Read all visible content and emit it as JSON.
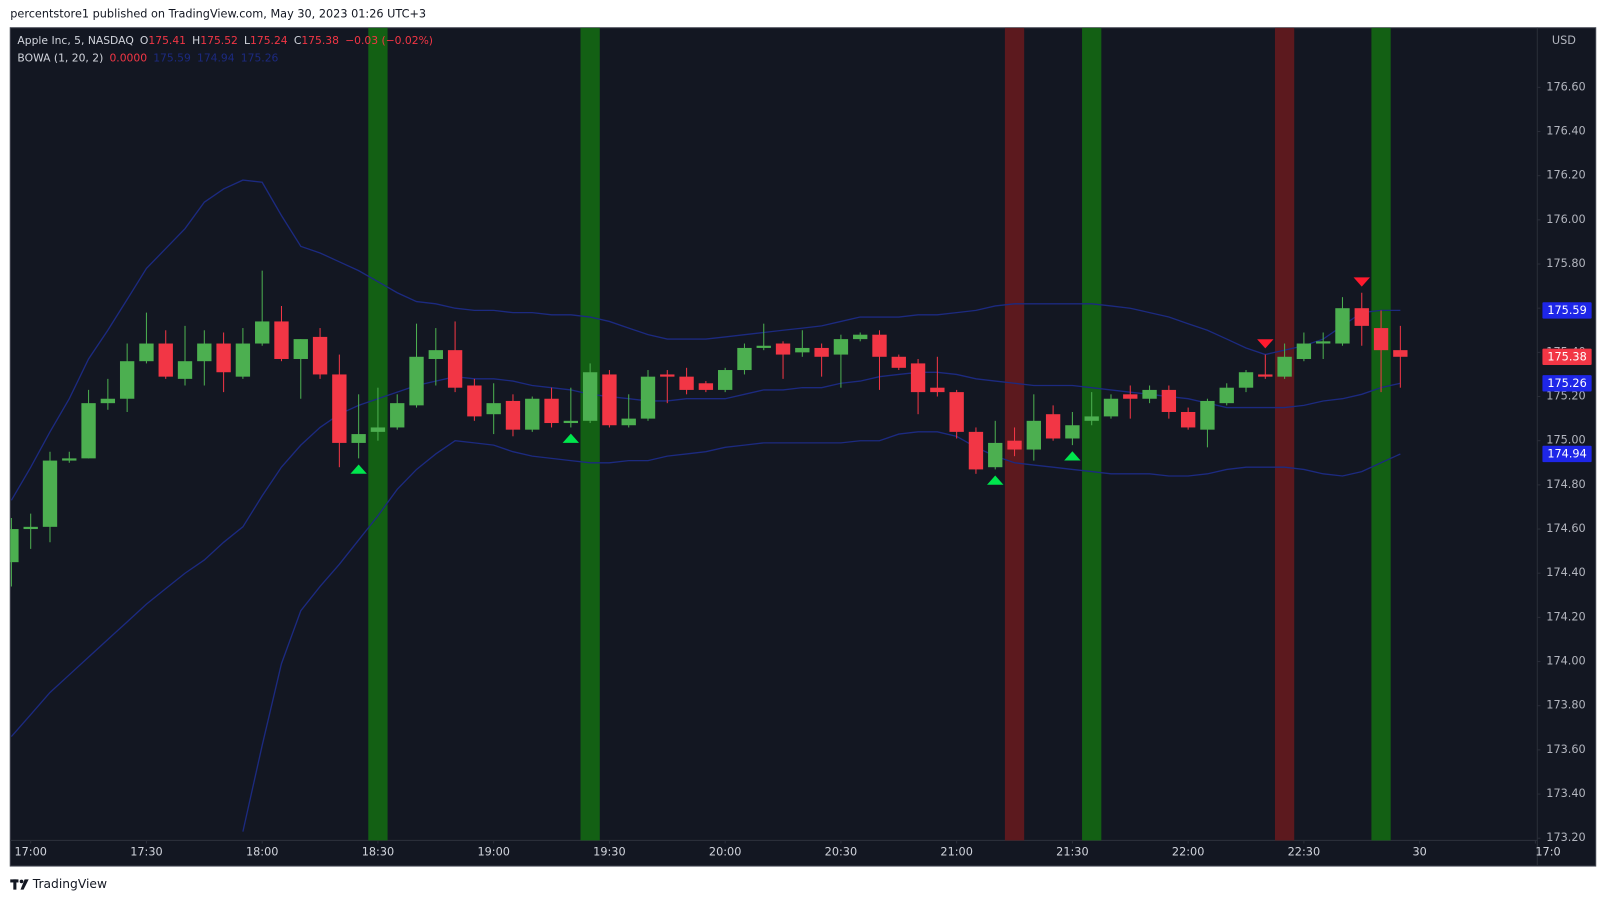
{
  "header": "percentstore1 published on TradingView.com, May 30, 2023 01:26 UTC+3",
  "footer": "TradingView",
  "chart_data": {
    "type": "candlestick",
    "symbol": "Apple Inc, 5, NASDAQ",
    "ohlc_prefixes": [
      "O",
      "H",
      "L",
      "C"
    ],
    "change": "−0.03 (−0.02%)",
    "indicator": "BOWA (1, 20, 2)",
    "indicator_value": "0.0000",
    "currency": "USD",
    "x": [
      -5,
      0,
      5,
      10,
      15,
      20,
      25,
      30,
      35,
      40,
      45,
      50,
      55,
      60,
      65,
      70,
      75,
      80,
      85,
      90,
      95,
      100,
      105,
      110,
      115,
      120,
      125,
      130,
      135,
      140,
      145,
      150,
      155,
      160,
      165,
      170,
      175,
      180,
      185,
      190,
      195,
      200,
      205,
      210,
      215,
      220,
      225,
      230,
      235,
      240,
      245,
      250,
      255,
      260,
      265,
      270,
      275,
      280,
      285,
      290,
      295,
      300,
      305,
      310,
      315,
      320,
      325,
      330,
      335,
      340,
      345,
      350,
      355
    ],
    "open": [
      174.45,
      174.6,
      174.61,
      174.91,
      174.92,
      175.17,
      175.19,
      175.36,
      175.44,
      175.28,
      175.36,
      175.44,
      175.29,
      175.44,
      175.54,
      175.37,
      175.47,
      175.3,
      174.99,
      175.04,
      175.06,
      175.16,
      175.37,
      175.41,
      175.25,
      175.12,
      175.18,
      175.05,
      175.19,
      175.08,
      175.09,
      175.3,
      175.07,
      175.1,
      175.3,
      175.29,
      175.26,
      175.23,
      175.32,
      175.42,
      175.44,
      175.4,
      175.42,
      175.39,
      175.46,
      175.48,
      175.38,
      175.35,
      175.24,
      175.22,
      175.04,
      174.88,
      175.0,
      174.96,
      175.12,
      175.01,
      175.09,
      175.11,
      175.21,
      175.19,
      175.23,
      175.13,
      175.05,
      175.17,
      175.24,
      175.3,
      175.29,
      175.37,
      175.44,
      175.44,
      175.6,
      175.51,
      175.41
    ],
    "high": [
      174.65,
      174.67,
      174.95,
      174.95,
      175.23,
      175.28,
      175.44,
      175.58,
      175.5,
      175.52,
      175.5,
      175.49,
      175.51,
      175.77,
      175.61,
      175.46,
      175.51,
      175.39,
      175.21,
      175.24,
      175.21,
      175.53,
      175.51,
      175.54,
      175.28,
      175.26,
      175.21,
      175.2,
      175.24,
      175.24,
      175.35,
      175.32,
      175.21,
      175.32,
      175.32,
      175.33,
      175.27,
      175.33,
      175.44,
      175.53,
      175.45,
      175.5,
      175.44,
      175.48,
      175.49,
      175.5,
      175.39,
      175.37,
      175.38,
      175.23,
      175.06,
      175.09,
      175.06,
      175.21,
      175.16,
      175.13,
      175.22,
      175.21,
      175.25,
      175.25,
      175.25,
      175.15,
      175.19,
      175.26,
      175.32,
      175.39,
      175.44,
      175.49,
      175.49,
      175.65,
      175.67,
      175.59,
      175.52
    ],
    "low": [
      174.34,
      174.51,
      174.54,
      174.9,
      174.92,
      175.14,
      175.13,
      175.35,
      175.28,
      175.25,
      175.25,
      175.22,
      175.28,
      175.43,
      175.36,
      175.19,
      175.28,
      174.88,
      174.92,
      175.0,
      175.05,
      175.15,
      175.25,
      175.22,
      175.09,
      175.03,
      175.02,
      175.04,
      175.06,
      175.06,
      175.08,
      175.06,
      175.06,
      175.09,
      175.17,
      175.21,
      175.22,
      175.22,
      175.3,
      175.41,
      175.28,
      175.38,
      175.29,
      175.24,
      175.45,
      175.23,
      175.32,
      175.12,
      175.2,
      175.01,
      174.85,
      174.87,
      174.93,
      174.91,
      175.0,
      174.98,
      175.07,
      175.1,
      175.1,
      175.17,
      175.1,
      175.05,
      174.97,
      175.16,
      175.22,
      175.28,
      175.28,
      175.36,
      175.37,
      175.43,
      175.43,
      175.22,
      175.24
    ],
    "close": [
      174.6,
      174.61,
      174.91,
      174.92,
      175.17,
      175.19,
      175.36,
      175.44,
      175.29,
      175.36,
      175.44,
      175.31,
      175.44,
      175.54,
      175.37,
      175.46,
      175.3,
      174.99,
      175.03,
      175.06,
      175.17,
      175.38,
      175.41,
      175.24,
      175.11,
      175.17,
      175.05,
      175.19,
      175.08,
      175.09,
      175.31,
      175.07,
      175.1,
      175.29,
      175.29,
      175.23,
      175.23,
      175.32,
      175.42,
      175.43,
      175.39,
      175.42,
      175.38,
      175.46,
      175.48,
      175.38,
      175.33,
      175.22,
      175.22,
      175.04,
      174.87,
      174.99,
      174.96,
      175.09,
      175.01,
      175.07,
      175.11,
      175.19,
      175.19,
      175.23,
      175.13,
      175.06,
      175.18,
      175.24,
      175.31,
      175.29,
      175.38,
      175.44,
      175.45,
      175.6,
      175.52,
      175.41,
      175.38
    ],
    "up_color": "#4caf50",
    "down_color": "#f23645",
    "bands": {
      "color": "#1c2a80",
      "tag_color": "#1e26e8",
      "upper": [
        174.73,
        174.88,
        175.04,
        175.19,
        175.37,
        175.5,
        175.64,
        175.78,
        175.87,
        175.96,
        176.08,
        176.14,
        176.18,
        176.17,
        176.02,
        175.88,
        175.85,
        175.81,
        175.77,
        175.72,
        175.67,
        175.63,
        175.62,
        175.6,
        175.59,
        175.59,
        175.58,
        175.58,
        175.57,
        175.57,
        175.56,
        175.54,
        175.51,
        175.48,
        175.46,
        175.46,
        175.46,
        175.47,
        175.48,
        175.49,
        175.5,
        175.51,
        175.52,
        175.54,
        175.56,
        175.56,
        175.56,
        175.57,
        175.57,
        175.58,
        175.59,
        175.61,
        175.62,
        175.62,
        175.62,
        175.62,
        175.62,
        175.61,
        175.6,
        175.58,
        175.56,
        175.53,
        175.5,
        175.46,
        175.42,
        175.39,
        175.41,
        175.43,
        175.46,
        175.52,
        175.58,
        175.59,
        175.59
      ],
      "middle": [
        173.66,
        173.76,
        173.86,
        173.94,
        174.02,
        174.1,
        174.18,
        174.26,
        174.33,
        174.4,
        174.46,
        174.54,
        174.61,
        174.75,
        174.88,
        174.98,
        175.06,
        175.12,
        175.16,
        175.19,
        175.22,
        175.25,
        175.27,
        175.29,
        175.28,
        175.28,
        175.27,
        175.25,
        175.24,
        175.23,
        175.21,
        175.2,
        175.19,
        175.18,
        175.18,
        175.19,
        175.19,
        175.19,
        175.21,
        175.23,
        175.23,
        175.24,
        175.24,
        175.26,
        175.27,
        175.29,
        175.3,
        175.31,
        175.31,
        175.3,
        175.28,
        175.27,
        175.26,
        175.25,
        175.25,
        175.25,
        175.24,
        175.23,
        175.22,
        175.21,
        175.2,
        175.19,
        175.17,
        175.15,
        175.15,
        175.15,
        175.15,
        175.16,
        175.18,
        175.19,
        175.21,
        175.24,
        175.26
      ],
      "lower": [
        null,
        null,
        null,
        null,
        null,
        null,
        null,
        null,
        null,
        null,
        null,
        null,
        173.23,
        173.62,
        173.99,
        174.23,
        174.34,
        174.44,
        174.55,
        174.66,
        174.78,
        174.87,
        174.94,
        175.0,
        174.99,
        174.98,
        174.95,
        174.93,
        174.92,
        174.91,
        174.9,
        174.9,
        174.91,
        174.91,
        174.93,
        174.94,
        174.95,
        174.97,
        174.98,
        174.99,
        174.99,
        174.99,
        174.99,
        174.99,
        175.0,
        175.0,
        175.03,
        175.04,
        175.04,
        175.02,
        174.97,
        174.93,
        174.9,
        174.89,
        174.88,
        174.87,
        174.86,
        174.85,
        174.85,
        174.85,
        174.84,
        174.84,
        174.85,
        174.87,
        174.88,
        174.88,
        174.88,
        174.87,
        174.85,
        174.84,
        174.86,
        174.9,
        174.94
      ]
    },
    "buy_signals": [
      90,
      145,
      275,
      350
    ],
    "sell_signals": [
      255,
      325
    ],
    "buy_signal_color": "#136014",
    "sell_signal_color": "#5c191e",
    "buy_markers": [
      85,
      140,
      250,
      270
    ],
    "sell_markers": [
      320,
      345
    ],
    "buy_marker_color": "#00e64d",
    "sell_marker_color": "#ff1a2e",
    "grid": false,
    "xlim": [
      -5.3,
      390.5
    ],
    "ylim": [
      173.19,
      176.87
    ],
    "xticks": [
      {
        "value": 0,
        "label": "17:00"
      },
      {
        "value": 30,
        "label": "17:30"
      },
      {
        "value": 60,
        "label": "18:00"
      },
      {
        "value": 90,
        "label": "18:30"
      },
      {
        "value": 120,
        "label": "19:00"
      },
      {
        "value": 150,
        "label": "19:30"
      },
      {
        "value": 180,
        "label": "20:00"
      },
      {
        "value": 210,
        "label": "20:30"
      },
      {
        "value": 240,
        "label": "21:00"
      },
      {
        "value": 270,
        "label": "21:30"
      },
      {
        "value": 300,
        "label": "22:00"
      },
      {
        "value": 330,
        "label": "22:30"
      },
      {
        "value": 360,
        "label": "30"
      },
      {
        "value": 390,
        "label": "17:0"
      }
    ],
    "yticks": [
      {
        "value": 173.2,
        "label": "173.20"
      },
      {
        "value": 173.4,
        "label": "173.40"
      },
      {
        "value": 173.6,
        "label": "173.60"
      },
      {
        "value": 173.8,
        "label": "173.80"
      },
      {
        "value": 174.0,
        "label": "174.00"
      },
      {
        "value": 174.2,
        "label": "174.20"
      },
      {
        "value": 174.4,
        "label": "174.40"
      },
      {
        "value": 174.6,
        "label": "174.60"
      },
      {
        "value": 174.8,
        "label": "174.80"
      },
      {
        "value": 175.0,
        "label": "175.00"
      },
      {
        "value": 175.2,
        "label": "175.20"
      },
      {
        "value": 175.4,
        "label": "175.40"
      },
      {
        "value": 175.6,
        "label": "175.60"
      },
      {
        "value": 175.8,
        "label": "175.80"
      },
      {
        "value": 176.0,
        "label": "176.00"
      },
      {
        "value": 176.2,
        "label": "176.20"
      },
      {
        "value": 176.4,
        "label": "176.40"
      },
      {
        "value": 176.6,
        "label": "176.60"
      }
    ]
  }
}
